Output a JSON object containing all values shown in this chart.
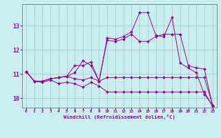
{
  "xlabel": "Windchill (Refroidissement éolien,°C)",
  "background_color": "#c8eef0",
  "grid_color": "#a0c8c8",
  "line_color": "#990099",
  "xlim": [
    -0.5,
    23.5
  ],
  "ylim": [
    9.6,
    13.9
  ],
  "xticks": [
    0,
    1,
    2,
    3,
    4,
    5,
    6,
    7,
    8,
    9,
    10,
    11,
    12,
    13,
    14,
    15,
    16,
    17,
    18,
    19,
    20,
    21,
    22,
    23
  ],
  "yticks": [
    10,
    11,
    12,
    13
  ],
  "series": [
    [
      11.1,
      10.7,
      10.7,
      10.8,
      10.85,
      10.9,
      11.05,
      11.55,
      11.35,
      10.7,
      12.5,
      12.45,
      12.55,
      12.75,
      13.55,
      13.55,
      12.6,
      12.55,
      13.35,
      11.45,
      11.25,
      11.05,
      10.15,
      9.7
    ],
    [
      11.1,
      10.7,
      10.7,
      10.8,
      10.85,
      10.9,
      10.8,
      10.75,
      10.85,
      10.7,
      12.4,
      12.35,
      12.45,
      12.65,
      12.35,
      12.35,
      12.55,
      12.65,
      12.65,
      12.65,
      11.35,
      11.25,
      11.2,
      9.7
    ],
    [
      11.1,
      10.7,
      10.7,
      10.8,
      10.85,
      10.9,
      11.35,
      11.35,
      11.5,
      10.7,
      10.85,
      10.85,
      10.85,
      10.85,
      10.85,
      10.85,
      10.85,
      10.85,
      10.85,
      10.85,
      10.85,
      10.85,
      10.85,
      9.7
    ],
    [
      11.1,
      10.7,
      10.65,
      10.75,
      10.6,
      10.65,
      10.6,
      10.45,
      10.65,
      10.5,
      10.25,
      10.25,
      10.25,
      10.25,
      10.25,
      10.25,
      10.25,
      10.25,
      10.25,
      10.25,
      10.25,
      10.25,
      10.25,
      9.65
    ]
  ]
}
